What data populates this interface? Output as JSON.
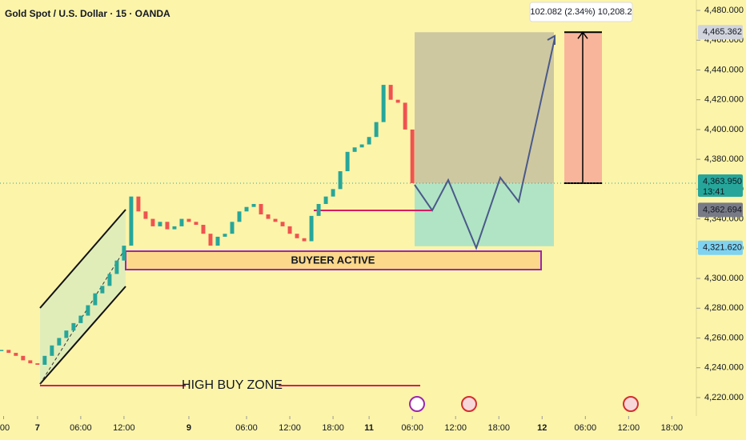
{
  "chart_data": {
    "type": "candlestick",
    "title": "Gold Spot / U.S. Dollar · 15 · OANDA",
    "x": [
      -5,
      -4,
      -3,
      -2,
      -1,
      0,
      1,
      2,
      3,
      4,
      5,
      6,
      7,
      8,
      9,
      10,
      11,
      12,
      13,
      14,
      15,
      16,
      17,
      18,
      19,
      20,
      21,
      22,
      23,
      24,
      25,
      26,
      27,
      28,
      29,
      30,
      31,
      32,
      33,
      34,
      35,
      36,
      37,
      38,
      39,
      40,
      41,
      42,
      43,
      44,
      45,
      46,
      47,
      48,
      49,
      50,
      51,
      52
    ],
    "values": [
      4252,
      4250,
      4248,
      4245,
      4243,
      4242,
      4248,
      4255,
      4260,
      4265,
      4270,
      4275,
      4282,
      4290,
      4295,
      4303,
      4312,
      4322,
      4355,
      4345,
      4340,
      4335,
      4338,
      4333,
      4335,
      4340,
      4338,
      4336,
      4330,
      4322,
      4328,
      4330,
      4338,
      4345,
      4348,
      4350,
      4343,
      4340,
      4338,
      4335,
      4330,
      4327,
      4325,
      4342,
      4350,
      4355,
      4360,
      4372,
      4385,
      4388,
      4390,
      4395,
      4405,
      4430,
      4420,
      4418,
      4400,
      4364
    ],
    "up_color": "#26a69a",
    "down_color": "#ef5350",
    "xlim": [
      -5.2,
      91.4
    ],
    "xticks": [
      {
        "value": -4.7,
        "label": ":00"
      },
      {
        "value": 0,
        "label": "7"
      },
      {
        "value": 6,
        "label": "06:00"
      },
      {
        "value": 12,
        "label": "12:00"
      },
      {
        "value": 21,
        "label": "9"
      },
      {
        "value": 29,
        "label": "06:00"
      },
      {
        "value": 35,
        "label": "12:00"
      },
      {
        "value": 41,
        "label": "18:00"
      },
      {
        "value": 46,
        "label": "11"
      },
      {
        "value": 52,
        "label": "06:00"
      },
      {
        "value": 58,
        "label": "12:00"
      },
      {
        "value": 64,
        "label": "18:00"
      },
      {
        "value": 70,
        "label": "12"
      },
      {
        "value": 76,
        "label": "06:00"
      },
      {
        "value": 82,
        "label": "12:00"
      },
      {
        "value": 88,
        "label": "18:00"
      }
    ],
    "ylim": [
      4207.6,
      4487
    ],
    "yticks": [
      {
        "value": 4220,
        "label": "4,220.000"
      },
      {
        "value": 4240,
        "label": "4,240.000"
      },
      {
        "value": 4260,
        "label": "4,260.000"
      },
      {
        "value": 4280,
        "label": "4,280.000"
      },
      {
        "value": 4300,
        "label": "4,300.000"
      },
      {
        "value": 4320,
        "label": "4,320.000"
      },
      {
        "value": 4340,
        "label": "4,340.000"
      },
      {
        "value": 4360,
        "label": "4,360.000"
      },
      {
        "value": 4380,
        "label": "4,380.000"
      },
      {
        "value": 4400,
        "label": "4,400.000"
      },
      {
        "value": 4420,
        "label": "4,420.000"
      },
      {
        "value": 4440,
        "label": "4,440.000"
      },
      {
        "value": 4460,
        "label": "4,460.000"
      },
      {
        "value": 4480,
        "label": "4,480.000"
      }
    ],
    "target": {
      "value": 4465.362,
      "label": "4,465.362"
    },
    "entry": {
      "value": 4363.95,
      "label": "4,363.950"
    },
    "countdown": "13:41",
    "level": {
      "value": 4362.694,
      "label": "4,362.694"
    },
    "stop": {
      "value": 4321.62,
      "label": "4,321.620"
    },
    "measure_label": "102.082 (2.34%) 10,208.2",
    "annotations": [
      "BUYEER ACTIVE",
      "HIGH BUY ZONE"
    ]
  }
}
